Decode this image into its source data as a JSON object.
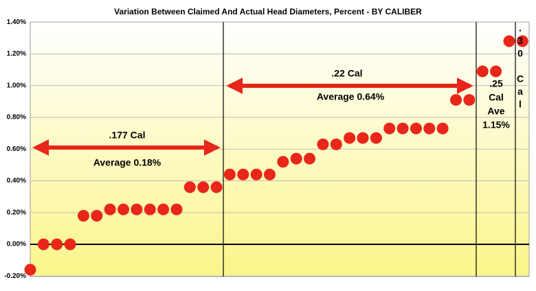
{
  "chart_data": {
    "type": "scatter",
    "title": "Variation Between Claimed And Actual Head Diameters, Percent - BY CALIBER",
    "x": [
      1,
      2,
      3,
      4,
      5,
      6,
      7,
      8,
      9,
      10,
      11,
      12,
      13,
      14,
      15,
      16,
      17,
      18,
      19,
      20,
      21,
      22,
      23,
      24,
      25,
      26,
      27,
      28,
      29,
      30,
      31,
      32,
      33,
      34,
      35,
      36,
      37,
      38
    ],
    "values": [
      -0.16,
      0,
      0,
      0,
      0.18,
      0.18,
      0.22,
      0.22,
      0.22,
      0.22,
      0.22,
      0.22,
      0.36,
      0.36,
      0.36,
      0.44,
      0.44,
      0.44,
      0.44,
      0.52,
      0.54,
      0.54,
      0.63,
      0.63,
      0.67,
      0.67,
      0.67,
      0.73,
      0.73,
      0.73,
      0.73,
      0.73,
      0.91,
      0.91,
      1.09,
      1.09,
      1.28,
      1.28
    ],
    "color": "#e8261a",
    "xlim": [
      1,
      38.5
    ],
    "ylim": [
      -0.2,
      1.4
    ],
    "yticks": [
      {
        "value": -0.2,
        "label": "-0.20%"
      },
      {
        "value": 0,
        "label": "0.00%"
      },
      {
        "value": 0.2,
        "label": "0.20%"
      },
      {
        "value": 0.4,
        "label": "0.40%"
      },
      {
        "value": 0.6,
        "label": "0.60%"
      },
      {
        "value": 0.8,
        "label": "0.80%"
      },
      {
        "value": 1.0,
        "label": "1.00%"
      },
      {
        "value": 1.2,
        "label": "1.20%"
      },
      {
        "value": 1.4,
        "label": "1.40%"
      }
    ],
    "grid": true,
    "annotations": [
      {
        "lines": [
          ".177 Cal"
        ]
      },
      {
        "lines": [
          "Average 0.18%"
        ]
      },
      {
        "lines": [
          ".22 Cal"
        ]
      },
      {
        "lines": [
          "Average 0.64%"
        ]
      },
      {
        "lines": [
          ".25",
          "Cal",
          "Ave",
          "1.15%"
        ]
      },
      {
        "lines": [
          ".",
          "3",
          "0",
          "C",
          "a",
          "l"
        ]
      }
    ]
  }
}
